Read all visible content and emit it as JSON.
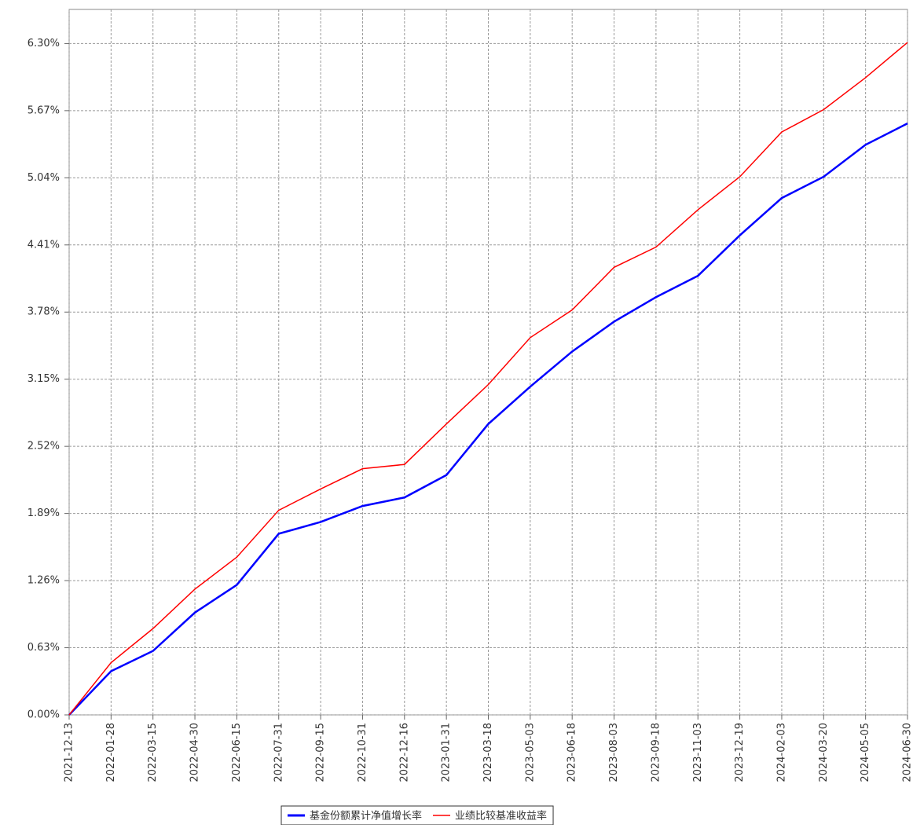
{
  "chart_data": {
    "type": "line",
    "x": [
      "2021-12-13",
      "2022-01-28",
      "2022-03-15",
      "2022-04-30",
      "2022-06-15",
      "2022-07-31",
      "2022-09-15",
      "2022-10-31",
      "2022-12-16",
      "2023-01-31",
      "2023-03-18",
      "2023-05-03",
      "2023-06-18",
      "2023-08-03",
      "2023-09-18",
      "2023-11-03",
      "2023-12-19",
      "2024-02-03",
      "2024-03-20",
      "2024-05-05",
      "2024-06-30"
    ],
    "series": [
      {
        "name": "基金份额累计净值增长率",
        "color": "#0000ff",
        "values": [
          0,
          0.41,
          0.6,
          0.96,
          1.22,
          1.7,
          1.81,
          1.96,
          2.04,
          2.25,
          2.73,
          3.08,
          3.41,
          3.69,
          3.92,
          4.12,
          4.5,
          4.85,
          5.05,
          5.35,
          5.55
        ]
      },
      {
        "name": "业绩比较基准收益率",
        "color": "#ff0000",
        "values": [
          0,
          0.49,
          0.81,
          1.18,
          1.48,
          1.92,
          2.12,
          2.31,
          2.35,
          2.73,
          3.1,
          3.54,
          3.8,
          4.2,
          4.39,
          4.74,
          5.05,
          5.47,
          5.68,
          5.98,
          6.31
        ]
      }
    ],
    "ylim": [
      0,
      6.62
    ],
    "yticks": [
      {
        "value": 0,
        "label": "0.00%"
      },
      {
        "value": 0.63,
        "label": "0.63%"
      },
      {
        "value": 1.26,
        "label": "1.26%"
      },
      {
        "value": 1.89,
        "label": "1.89%"
      },
      {
        "value": 2.52,
        "label": "2.52%"
      },
      {
        "value": 3.15,
        "label": "3.15%"
      },
      {
        "value": 3.78,
        "label": "3.78%"
      },
      {
        "value": 4.41,
        "label": "4.41%"
      },
      {
        "value": 5.04,
        "label": "5.04%"
      },
      {
        "value": 5.67,
        "label": "5.67%"
      },
      {
        "value": 6.3,
        "label": "6.30%"
      }
    ],
    "grid": true,
    "legend": "bottom"
  }
}
